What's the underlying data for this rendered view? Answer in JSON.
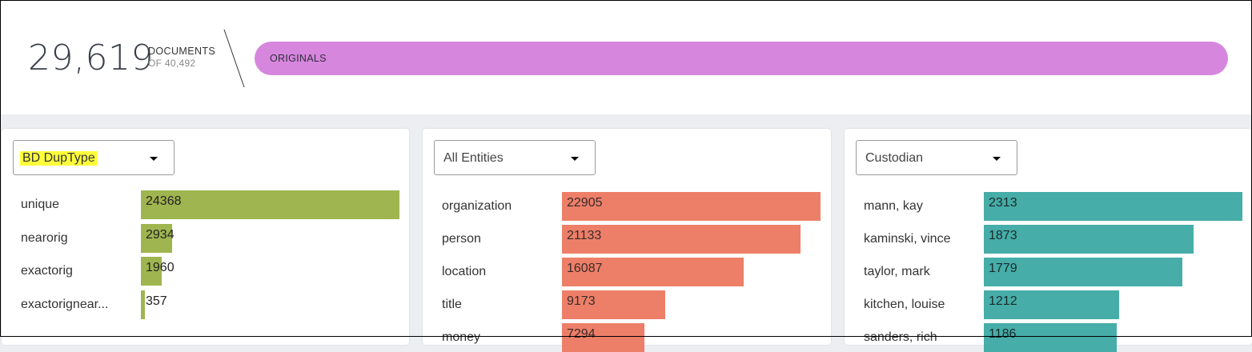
{
  "summary": {
    "count": "29,619",
    "label": "DOCUMENTS",
    "sub": "OF 40,492",
    "bar_label": "ORIGINALS",
    "bar_color": "#d786dd"
  },
  "panels": [
    {
      "select": "BD DupType",
      "highlighted": true,
      "color": "#9fb54f",
      "value_color": "#222222",
      "max": 24368,
      "rows": [
        {
          "label": "unique",
          "value": 24368,
          "text": "24368"
        },
        {
          "label": "nearorig",
          "value": 2934,
          "text": "2934"
        },
        {
          "label": "exactorig",
          "value": 1960,
          "text": "1960"
        },
        {
          "label": "exactorignear...",
          "value": 357,
          "text": "357"
        }
      ]
    },
    {
      "select": "All Entities",
      "highlighted": false,
      "color": "#ed7f69",
      "value_color": "#3a2a28",
      "max": 22905,
      "rows": [
        {
          "label": "organization",
          "value": 22905,
          "text": "22905"
        },
        {
          "label": "person",
          "value": 21133,
          "text": "21133"
        },
        {
          "label": "location",
          "value": 16087,
          "text": "16087"
        },
        {
          "label": "title",
          "value": 9173,
          "text": "9173"
        },
        {
          "label": "money",
          "value": 7294,
          "text": "7294"
        }
      ]
    },
    {
      "select": "Custodian",
      "highlighted": false,
      "color": "#46ada8",
      "value_color": "#1a2a2a",
      "max": 2313,
      "rows": [
        {
          "label": "mann, kay",
          "value": 2313,
          "text": "2313"
        },
        {
          "label": "kaminski, vince",
          "value": 1873,
          "text": "1873"
        },
        {
          "label": "taylor, mark",
          "value": 1779,
          "text": "1779"
        },
        {
          "label": "kitchen, louise",
          "value": 1212,
          "text": "1212"
        },
        {
          "label": "sanders, rich",
          "value": 1186,
          "text": "1186"
        }
      ]
    }
  ]
}
